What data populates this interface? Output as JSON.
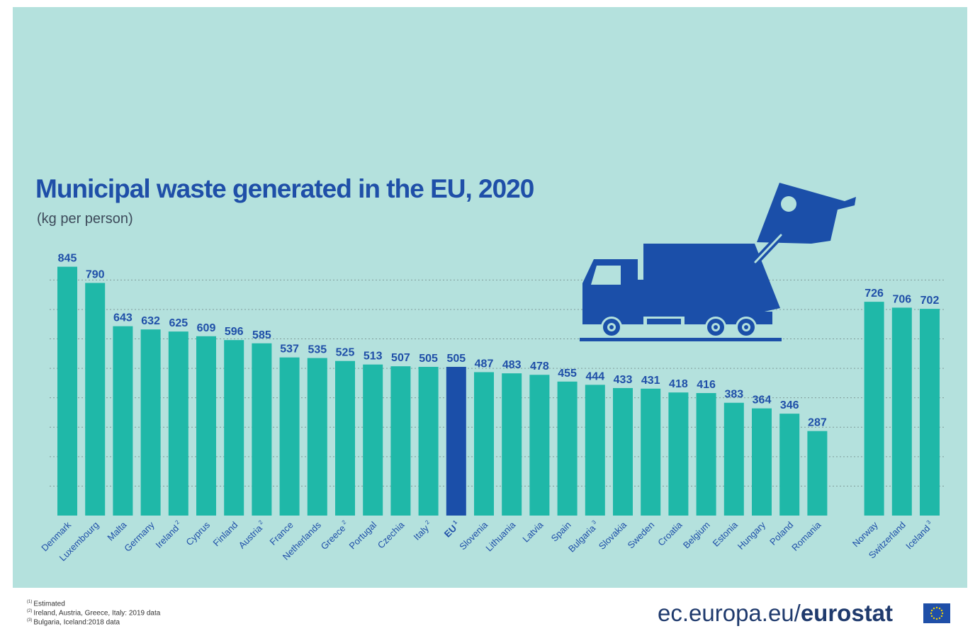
{
  "chart_data": {
    "type": "bar",
    "title": "Municipal waste generated in the EU, 2020",
    "subtitle": "(kg per person)",
    "ylim": [
      0,
      900
    ],
    "grid": true,
    "highlight_color": "#1b4fa9",
    "bar_color": "#1fb8a8",
    "categories": [
      {
        "name": "Denmark",
        "sup": ""
      },
      {
        "name": "Luxembourg",
        "sup": ""
      },
      {
        "name": "Malta",
        "sup": ""
      },
      {
        "name": "Germany",
        "sup": ""
      },
      {
        "name": "Ireland",
        "sup": "2"
      },
      {
        "name": "Cyprus",
        "sup": ""
      },
      {
        "name": "Finland",
        "sup": ""
      },
      {
        "name": "Austria",
        "sup": "2"
      },
      {
        "name": "France",
        "sup": ""
      },
      {
        "name": "Netherlands",
        "sup": ""
      },
      {
        "name": "Greece",
        "sup": "2"
      },
      {
        "name": "Portugal",
        "sup": ""
      },
      {
        "name": "Czechia",
        "sup": ""
      },
      {
        "name": "Italy",
        "sup": "2"
      },
      {
        "name": "EU",
        "sup": "1"
      },
      {
        "name": "Slovenia",
        "sup": ""
      },
      {
        "name": "Lithuania",
        "sup": ""
      },
      {
        "name": "Latvia",
        "sup": ""
      },
      {
        "name": "Spain",
        "sup": ""
      },
      {
        "name": "Bulgaria",
        "sup": "3"
      },
      {
        "name": "Slovakia",
        "sup": ""
      },
      {
        "name": "Sweden",
        "sup": ""
      },
      {
        "name": "Croatia",
        "sup": ""
      },
      {
        "name": "Belgium",
        "sup": ""
      },
      {
        "name": "Estonia",
        "sup": ""
      },
      {
        "name": "Hungary",
        "sup": ""
      },
      {
        "name": "Poland",
        "sup": ""
      },
      {
        "name": "Romania",
        "sup": ""
      },
      {
        "name": "Norway",
        "sup": ""
      },
      {
        "name": "Switzerland",
        "sup": ""
      },
      {
        "name": "Iceland",
        "sup": "3"
      }
    ],
    "values": [
      845,
      790,
      643,
      632,
      625,
      609,
      596,
      585,
      537,
      535,
      525,
      513,
      507,
      505,
      505,
      487,
      483,
      478,
      455,
      444,
      433,
      431,
      418,
      416,
      383,
      364,
      346,
      287,
      726,
      706,
      702
    ],
    "highlight_index": 14
  },
  "footnotes": [
    {
      "sup": "(1)",
      "text": "Estimated"
    },
    {
      "sup": "(2)",
      "text": "Ireland, Austria, Greece, Italy: 2019 data"
    },
    {
      "sup": "(3)",
      "text": "Bulgaria, Iceland:2018 data"
    }
  ],
  "brand": {
    "url_prefix": "ec.europa.eu/",
    "name": "eurostat",
    "flag_icon": "eu-flag-icon"
  },
  "illustration_icon": "garbage-truck-icon"
}
